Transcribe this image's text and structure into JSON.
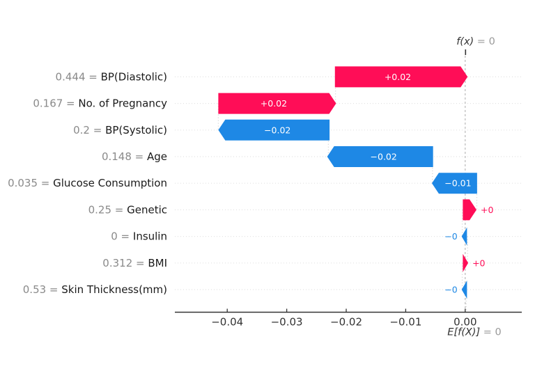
{
  "chart_data": {
    "type": "bar",
    "variant": "shap-waterfall",
    "title": "",
    "xlabel": "",
    "ylabel": "",
    "xlim": [
      -0.0488,
      0.0095
    ],
    "grid": "dotted-row-guides",
    "legend": "none",
    "fx_annotation": {
      "italic": "f(x)",
      "rest": " = 0"
    },
    "efx_annotation": {
      "italic": "E[f(X)]",
      "rest": " = 0"
    },
    "base_value": 0,
    "fx_value": 0,
    "x_ticks": [
      {
        "value": -0.04,
        "label": "−0.04"
      },
      {
        "value": -0.03,
        "label": "−0.03"
      },
      {
        "value": -0.02,
        "label": "−0.02"
      },
      {
        "value": -0.01,
        "label": "−0.01"
      },
      {
        "value": 0.0,
        "label": "0.00"
      }
    ],
    "colors": {
      "positive": "#ff0d57",
      "negative": "#1e88e5",
      "value_text": "#8a8a8a",
      "feature_text": "#1a1a1a",
      "axis": "#333333",
      "muted": "#999999",
      "inside_label": "#ffffff",
      "baseline_dash": "#b3b3b3",
      "row_dots": "#e2e2e2",
      "connector_dots": "#cccccc"
    },
    "rows": [
      {
        "feature": "BP(Diastolic)",
        "feature_value": "0.444",
        "equals": " = ",
        "contribution": 0.022,
        "label": "+0.02",
        "direction": "right",
        "span": [
          -0.0219,
          0.0004
        ],
        "label_position": "inside"
      },
      {
        "feature": "No. of Pregnancy",
        "feature_value": "0.167",
        "equals": " = ",
        "contribution": 0.02,
        "label": "+0.02",
        "direction": "right",
        "span": [
          -0.0415,
          -0.0217
        ],
        "label_position": "inside"
      },
      {
        "feature": "BP(Systolic)",
        "feature_value": "0.2",
        "equals": " = ",
        "contribution": -0.019,
        "label": "−0.02",
        "direction": "left",
        "span": [
          -0.0415,
          -0.0228
        ],
        "label_position": "inside"
      },
      {
        "feature": "Age",
        "feature_value": "0.148",
        "equals": " = ",
        "contribution": -0.018,
        "label": "−0.02",
        "direction": "left",
        "span": [
          -0.0232,
          -0.0054
        ],
        "label_position": "inside"
      },
      {
        "feature": "Glucose Consumption",
        "feature_value": "0.035",
        "equals": " = ",
        "contribution": -0.008,
        "label": "−0.01",
        "direction": "left",
        "span": [
          -0.0056,
          0.002
        ],
        "label_position": "inside"
      },
      {
        "feature": "Genetic",
        "feature_value": "0.25",
        "equals": " = ",
        "contribution": 0.002,
        "label": "+0",
        "direction": "right",
        "span": [
          -0.0004,
          0.0019
        ],
        "label_position": "outside"
      },
      {
        "feature": "Insulin",
        "feature_value": "0",
        "equals": " = ",
        "contribution": -0.0005,
        "label": "−0",
        "direction": "left",
        "span": [
          -0.0006,
          0.0003
        ],
        "label_position": "outside"
      },
      {
        "feature": "BMI",
        "feature_value": "0.312",
        "equals": " = ",
        "contribution": 0.0005,
        "label": "+0",
        "direction": "right",
        "span": [
          -0.0004,
          0.0005
        ],
        "label_position": "outside"
      },
      {
        "feature": "Skin Thickness(mm)",
        "feature_value": "0.53",
        "equals": " = ",
        "contribution": -0.0005,
        "label": "−0",
        "direction": "left",
        "span": [
          -0.0006,
          0.0003
        ],
        "label_position": "outside"
      }
    ]
  }
}
